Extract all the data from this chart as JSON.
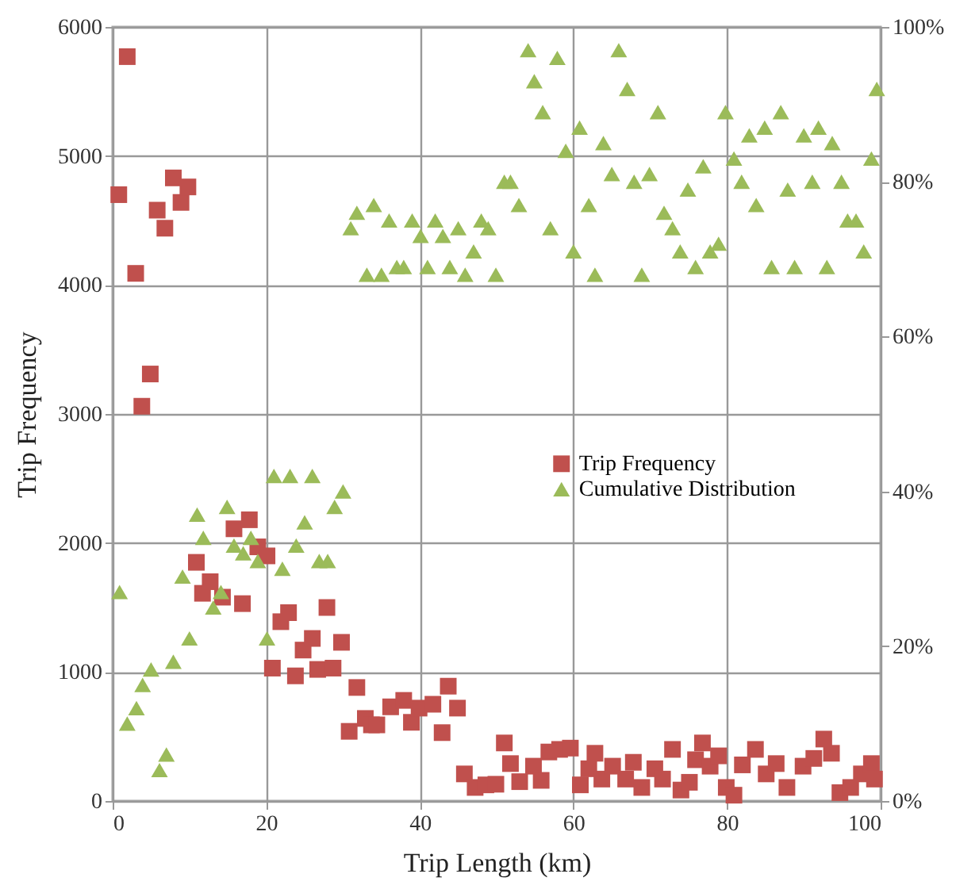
{
  "chart_data": {
    "type": "scatter",
    "xlabel": "Trip Length (km)",
    "ylabel": "Trip Frequency",
    "xlim": [
      0,
      100
    ],
    "xticks": [
      0,
      20,
      40,
      60,
      80,
      100
    ],
    "ylim": [
      0,
      6000
    ],
    "yticks": [
      0,
      1000,
      2000,
      3000,
      4000,
      5000,
      6000
    ],
    "y2lim": [
      0,
      100
    ],
    "y2ticks": [
      {
        "value": 0,
        "label": "0%"
      },
      {
        "value": 20,
        "label": "20%"
      },
      {
        "value": 40,
        "label": "40%"
      },
      {
        "value": 60,
        "label": "60%"
      },
      {
        "value": 80,
        "label": "80%"
      },
      {
        "value": 100,
        "label": "100%"
      }
    ],
    "grid": true,
    "legend": "right",
    "series": [
      {
        "name": "Trip Frequency",
        "color": "#c0504d",
        "marker": "square",
        "x": [
          0.8,
          1.9,
          3.0,
          3.8,
          4.9,
          5.8,
          6.8,
          7.9,
          8.9,
          9.8,
          10.9,
          11.7,
          12.7,
          14.3,
          15.8,
          16.9,
          17.8,
          18.9,
          20.1,
          20.8,
          21.9,
          22.9,
          23.8,
          24.8,
          26.0,
          26.7,
          27.9,
          28.7,
          29.8,
          30.8,
          31.8,
          32.9,
          33.7,
          34.4,
          36.2,
          37.9,
          38.9,
          39.9,
          41.7,
          42.9,
          43.7,
          44.9,
          45.8,
          47.2,
          48.6,
          49.9,
          51.0,
          51.8,
          53.0,
          54.8,
          55.8,
          56.8,
          58.2,
          59.6,
          60.9,
          62.0,
          62.8,
          63.7,
          65.1,
          66.8,
          67.8,
          68.9,
          70.6,
          71.6,
          72.9,
          74.0,
          75.1,
          75.9,
          76.8,
          77.8,
          78.9,
          79.9,
          80.9,
          82.0,
          83.7,
          85.1,
          86.4,
          87.8,
          89.9,
          91.3,
          92.6,
          93.6,
          94.7,
          96.1,
          97.5,
          98.8,
          99.2
        ],
        "values": [
          4700,
          5770,
          4090,
          3060,
          3310,
          4580,
          4440,
          4830,
          4640,
          4760,
          1850,
          1610,
          1700,
          1580,
          2110,
          1530,
          2180,
          1970,
          1900,
          1030,
          1390,
          1460,
          970,
          1170,
          1260,
          1020,
          1500,
          1030,
          1230,
          540,
          880,
          640,
          590,
          590,
          730,
          780,
          610,
          720,
          750,
          530,
          890,
          720,
          210,
          105,
          125,
          130,
          450,
          290,
          150,
          270,
          160,
          380,
          400,
          410,
          125,
          250,
          370,
          170,
          270,
          170,
          300,
          105,
          250,
          170,
          400,
          85,
          145,
          320,
          450,
          270,
          350,
          105,
          45,
          280,
          400,
          210,
          290,
          105,
          270,
          330,
          480,
          370,
          65,
          105,
          210,
          290,
          170
        ]
      },
      {
        "name": "Cumulative Distribution",
        "color": "#9bbb59",
        "marker": "triangle",
        "axis": "y2",
        "x": [
          0.9,
          1.9,
          3.1,
          3.9,
          5.0,
          6.1,
          7.0,
          7.9,
          9.1,
          10.0,
          11.0,
          11.8,
          13.1,
          14.1,
          14.9,
          15.8,
          17.0,
          18.0,
          18.9,
          20.1,
          21.0,
          22.1,
          23.1,
          23.9,
          25.0,
          26.0,
          26.9,
          28.0,
          28.9,
          30.0,
          31.0,
          31.8,
          33.1,
          34.0,
          35.0,
          36.0,
          37.0,
          37.9,
          39.0,
          40.1,
          41.0,
          42.0,
          43.0,
          43.9,
          45.0,
          45.9,
          47.0,
          48.0,
          48.9,
          49.9,
          51.0,
          51.8,
          52.9,
          54.1,
          54.9,
          56.0,
          57.0,
          57.9,
          59.0,
          60.0,
          60.8,
          62.0,
          62.8,
          63.9,
          65.0,
          65.9,
          67.0,
          67.9,
          68.9,
          69.9,
          71.0,
          71.8,
          72.9,
          73.9,
          74.9,
          75.9,
          76.9,
          77.8,
          78.9,
          79.8,
          80.9,
          81.9,
          82.9,
          83.8,
          84.9,
          85.8,
          87.0,
          87.9,
          88.8,
          90.0,
          91.1,
          91.9,
          93.0,
          93.7,
          94.9,
          95.7,
          96.8,
          97.8,
          98.8,
          99.5
        ],
        "values": [
          27,
          10,
          12,
          15,
          17,
          4,
          6,
          18,
          29,
          21,
          37,
          34,
          25,
          27,
          38,
          33,
          32,
          34,
          31,
          21,
          42,
          30,
          42,
          33,
          36,
          42,
          31,
          31,
          38,
          40,
          74,
          76,
          68,
          77,
          68,
          75,
          69,
          69,
          75,
          73,
          69,
          75,
          73,
          69,
          74,
          68,
          71,
          75,
          74,
          68,
          80,
          80,
          77,
          97,
          93,
          89,
          74,
          96,
          84,
          71,
          87,
          77,
          68,
          85,
          81,
          97,
          92,
          80,
          68,
          81,
          89,
          76,
          74,
          71,
          79,
          69,
          82,
          71,
          72,
          89,
          83,
          80,
          86,
          77,
          87,
          69,
          89,
          79,
          69,
          86,
          80,
          87,
          69,
          85,
          80,
          75,
          75,
          71,
          83,
          92
        ]
      }
    ]
  }
}
